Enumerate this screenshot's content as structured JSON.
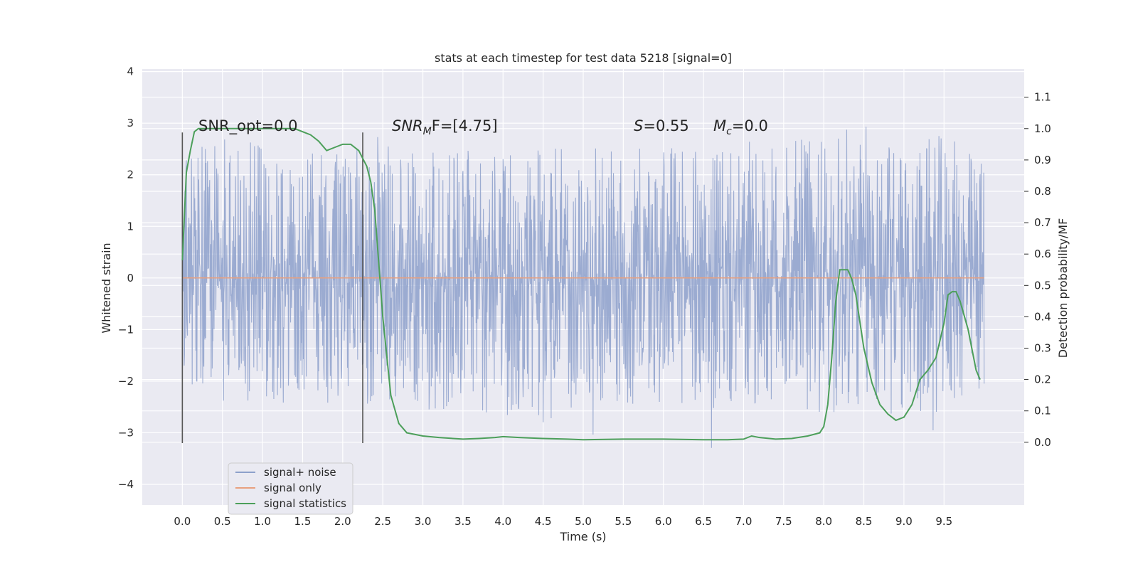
{
  "chart_data": {
    "type": "line",
    "title": "stats at each timestep for test data 5218 [signal=0]",
    "xlabel": "Time (s)",
    "ylabel": "Whitened strain",
    "ylabel_right": "Detection probability/MF",
    "xlim": [
      -0.5,
      10.5
    ],
    "ylim": [
      -4.4,
      4.05
    ],
    "ylim_right": [
      -0.2,
      1.19
    ],
    "x_ticks": [
      "0.0",
      "0.5",
      "1.0",
      "1.5",
      "2.0",
      "2.5",
      "3.0",
      "3.5",
      "4.0",
      "4.5",
      "5.0",
      "5.5",
      "6.0",
      "6.5",
      "7.0",
      "7.5",
      "8.0",
      "8.5",
      "9.0",
      "9.5"
    ],
    "y_ticks": [
      "4",
      "3",
      "2",
      "1",
      "0",
      "−1",
      "−2",
      "−3",
      "−4"
    ],
    "y_ticks_right": [
      "1.1",
      "1.0",
      "0.9",
      "0.8",
      "0.7",
      "0.6",
      "0.5",
      "0.4",
      "0.3",
      "0.2",
      "0.1",
      "0.0"
    ],
    "grid": true,
    "legend_position": "lower-left",
    "legend": [
      {
        "name": "signal+ noise",
        "color": "#8da0cb"
      },
      {
        "name": "signal only",
        "color": "#e8a07f"
      },
      {
        "name": "signal statistics",
        "color": "#4c9f5a"
      }
    ],
    "annotations": {
      "snr_opt": "SNR_opt=0.0",
      "snr_mf_base": "SNR",
      "snr_mf_sub": "M",
      "snr_mf_rest": "F=[4.75]",
      "s_var": "S",
      "s_rest": "=0.55",
      "mc_var": "M",
      "mc_sub": "c",
      "mc_rest": "=0.0"
    },
    "vlines": [
      0.0,
      2.25
    ],
    "signal_only": {
      "x": [
        0.0,
        10.0
      ],
      "y": [
        0.0,
        0.0
      ]
    },
    "noise_envelope": {
      "x": [
        0.0,
        0.5,
        1.0,
        1.5,
        2.0,
        2.5,
        3.0,
        3.5,
        4.0,
        4.5,
        5.0,
        5.5,
        6.0,
        6.5,
        7.0,
        7.5,
        8.0,
        8.5,
        9.0,
        9.5,
        10.0
      ],
      "upper": [
        2.4,
        2.7,
        2.6,
        2.4,
        2.6,
        2.8,
        2.5,
        2.6,
        2.4,
        2.5,
        2.6,
        2.4,
        2.7,
        2.5,
        2.4,
        2.6,
        2.8,
        3.0,
        2.6,
        2.8,
        2.4
      ],
      "lower": [
        -2.3,
        -2.7,
        -2.5,
        -2.4,
        -2.6,
        -2.4,
        -2.6,
        -2.5,
        -2.7,
        -2.8,
        -2.5,
        -2.6,
        -2.4,
        -2.5,
        -2.8,
        -2.5,
        -2.7,
        -2.6,
        -2.8,
        -2.6,
        -2.4
      ]
    },
    "signal_statistics": {
      "name": "signal statistics",
      "x": [
        0.0,
        0.05,
        0.1,
        0.15,
        0.2,
        0.4,
        0.6,
        0.8,
        1.0,
        1.2,
        1.4,
        1.5,
        1.6,
        1.7,
        1.8,
        1.9,
        2.0,
        2.1,
        2.2,
        2.3,
        2.35,
        2.4,
        2.5,
        2.6,
        2.7,
        2.8,
        2.9,
        3.0,
        3.2,
        3.5,
        3.7,
        3.9,
        4.0,
        4.2,
        4.5,
        4.8,
        5.0,
        5.5,
        6.0,
        6.5,
        6.8,
        7.0,
        7.1,
        7.2,
        7.4,
        7.6,
        7.8,
        7.95,
        8.0,
        8.05,
        8.1,
        8.15,
        8.2,
        8.25,
        8.3,
        8.35,
        8.4,
        8.5,
        8.6,
        8.7,
        8.8,
        8.9,
        9.0,
        9.1,
        9.2,
        9.3,
        9.4,
        9.5,
        9.55,
        9.6,
        9.65,
        9.7,
        9.8,
        9.9,
        9.95
      ],
      "y": [
        0.58,
        0.86,
        0.93,
        0.99,
        1.0,
        1.0,
        1.0,
        1.0,
        1.0,
        1.0,
        1.0,
        0.99,
        0.98,
        0.96,
        0.93,
        0.94,
        0.95,
        0.95,
        0.93,
        0.88,
        0.83,
        0.74,
        0.4,
        0.15,
        0.06,
        0.03,
        0.025,
        0.02,
        0.015,
        0.01,
        0.012,
        0.015,
        0.018,
        0.015,
        0.012,
        0.01,
        0.008,
        0.01,
        0.01,
        0.008,
        0.008,
        0.01,
        0.02,
        0.015,
        0.01,
        0.012,
        0.02,
        0.03,
        0.05,
        0.12,
        0.27,
        0.45,
        0.55,
        0.55,
        0.55,
        0.52,
        0.47,
        0.3,
        0.19,
        0.12,
        0.09,
        0.07,
        0.08,
        0.12,
        0.2,
        0.23,
        0.27,
        0.38,
        0.47,
        0.48,
        0.48,
        0.45,
        0.36,
        0.23,
        0.2
      ]
    }
  }
}
